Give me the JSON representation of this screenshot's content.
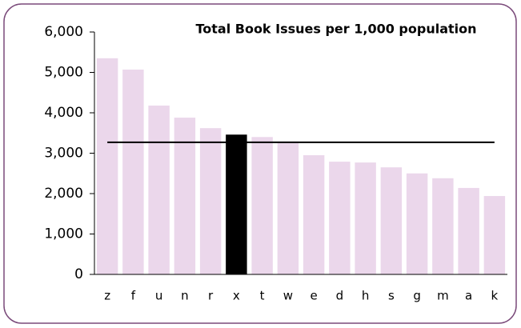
{
  "chart_data": {
    "type": "bar",
    "title": "Total Book Issues per 1,000 population",
    "categories": [
      "z",
      "f",
      "u",
      "n",
      "r",
      "x",
      "t",
      "w",
      "e",
      "d",
      "h",
      "s",
      "g",
      "m",
      "a",
      "k"
    ],
    "values": [
      5350,
      5070,
      4180,
      3880,
      3620,
      3460,
      3400,
      3290,
      2950,
      2790,
      2770,
      2650,
      2500,
      2380,
      2140,
      1940
    ],
    "colors": [
      "#ebd7eb",
      "#ebd7eb",
      "#ebd7eb",
      "#ebd7eb",
      "#ebd7eb",
      "#000000",
      "#ebd7eb",
      "#ebd7eb",
      "#ebd7eb",
      "#ebd7eb",
      "#ebd7eb",
      "#ebd7eb",
      "#ebd7eb",
      "#ebd7eb",
      "#ebd7eb",
      "#ebd7eb"
    ],
    "reference_line": {
      "value": 3270,
      "color": "#000000"
    },
    "ylim": [
      0,
      6000
    ],
    "yticks": [
      0,
      {
        "value": 1000,
        "label": "1,000"
      },
      {
        "value": 2000,
        "label": "2,000"
      },
      {
        "value": 3000,
        "label": "3,000"
      },
      {
        "value": 4000,
        "label": "4,000"
      },
      {
        "value": 5000,
        "label": "5,000"
      },
      {
        "value": 6000,
        "label": "6,000"
      }
    ],
    "grid": false
  }
}
